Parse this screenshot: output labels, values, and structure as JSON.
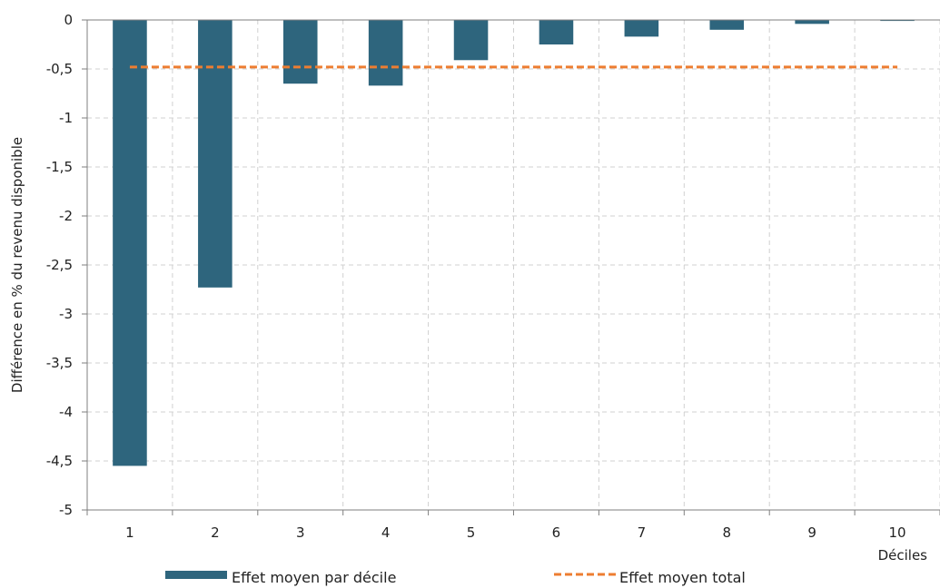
{
  "chart_data": {
    "type": "bar",
    "categories": [
      "1",
      "2",
      "3",
      "4",
      "5",
      "6",
      "7",
      "8",
      "9",
      "10"
    ],
    "series": [
      {
        "name": "Effet moyen par décile",
        "type": "bar",
        "color": "#2e657d",
        "values": [
          -4.55,
          -2.73,
          -0.65,
          -0.67,
          -0.41,
          -0.25,
          -0.17,
          -0.1,
          -0.04,
          -0.01
        ]
      },
      {
        "name": "Effet moyen total",
        "type": "line",
        "style": "dashed",
        "color": "#ed7d31",
        "values": [
          -0.48,
          -0.48,
          -0.48,
          -0.48,
          -0.48,
          -0.48,
          -0.48,
          -0.48,
          -0.48,
          -0.48
        ]
      }
    ],
    "xlabel": "Déciles",
    "ylabel": "Différence en % du revenu disponible",
    "ylim": [
      -5,
      0
    ],
    "yticks": [
      0,
      -0.5,
      -1,
      -1.5,
      -2,
      -2.5,
      -3,
      -3.5,
      -4,
      -4.5,
      -5
    ],
    "ytick_labels": [
      "0",
      "-0,5",
      "-1",
      "-1,5",
      "-2",
      "-2,5",
      "-3",
      "-3,5",
      "-4",
      "-4,5",
      "-5"
    ],
    "grid": true,
    "legend_position": "bottom"
  }
}
